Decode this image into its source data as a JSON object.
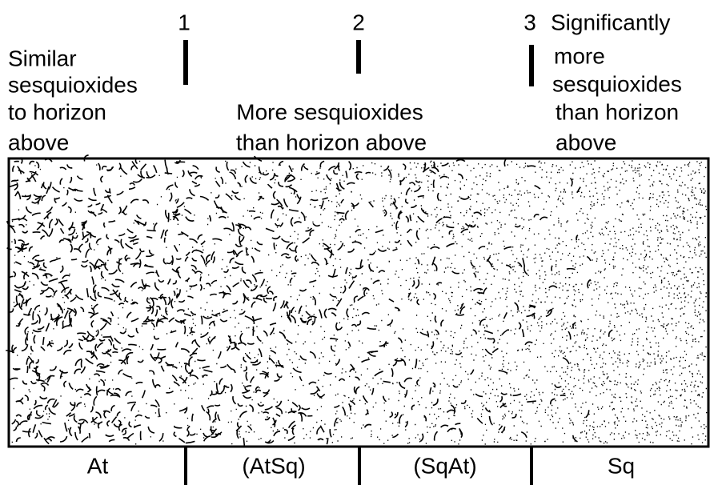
{
  "markers": [
    "1",
    "2",
    "3"
  ],
  "descriptions": [
    [
      "Similar",
      "sesquioxides",
      "to horizon",
      "above"
    ],
    [
      "More sesquioxides",
      "than horizon above"
    ],
    [
      "Significantly",
      "more",
      "sesquioxides",
      "than horizon",
      "above"
    ]
  ],
  "zones": [
    "At",
    "(AtSq)",
    "(SqAt)",
    "Sq"
  ]
}
